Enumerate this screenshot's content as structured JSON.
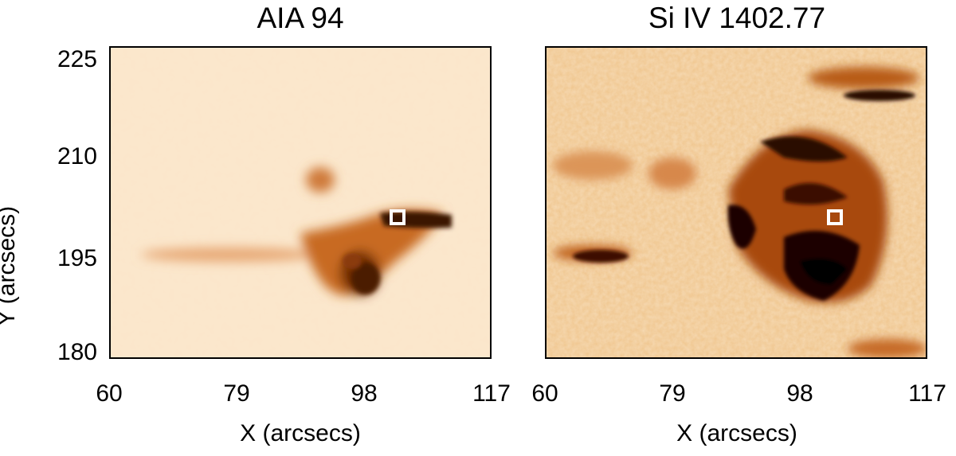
{
  "panels": [
    {
      "title": "AIA 94",
      "xlabel": "X (arcsecs)",
      "ylabel": "Y (arcsecs)",
      "xticks": [
        "60",
        "79",
        "98",
        "117"
      ],
      "yticks": [
        "225",
        "210",
        "195",
        "180"
      ]
    },
    {
      "title": "Si IV 1402.77",
      "xlabel": "X (arcsecs)",
      "xticks": [
        "60",
        "79",
        "98",
        "117"
      ]
    }
  ],
  "colors": {
    "background": "#fbe5c8",
    "dark": "#2a0a00",
    "mid": "#b25412",
    "marker": "#ffffff"
  }
}
